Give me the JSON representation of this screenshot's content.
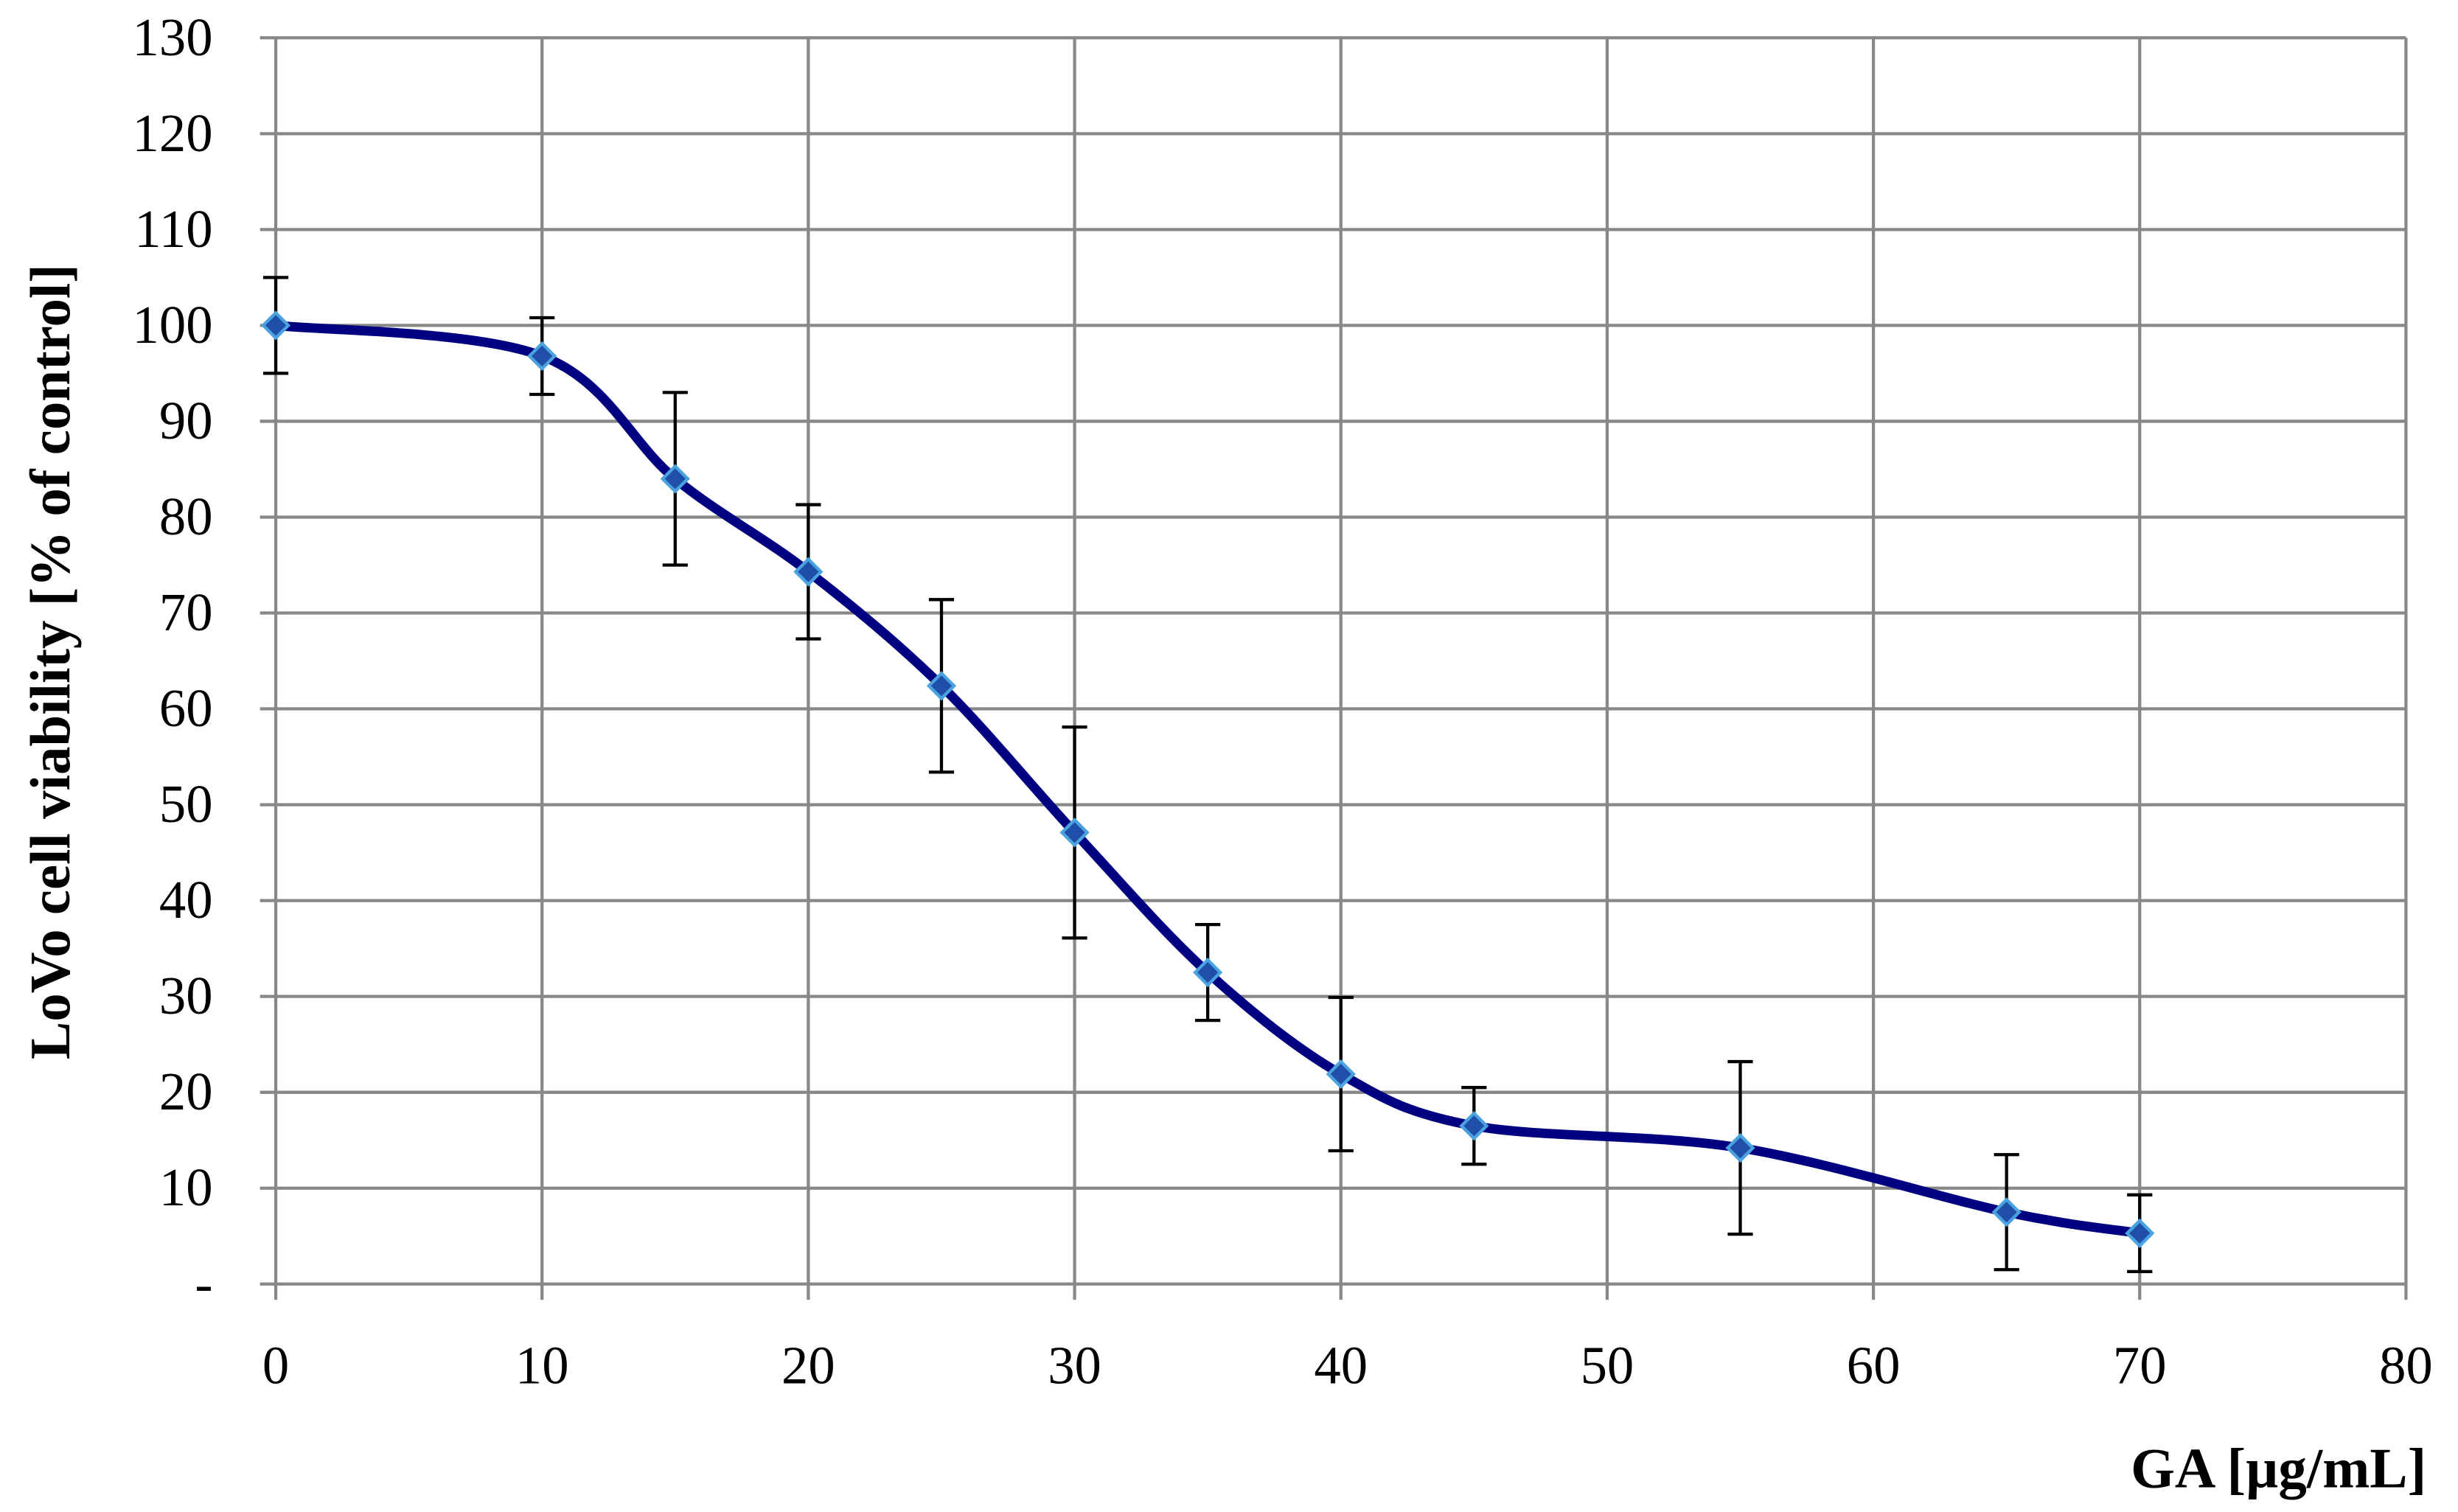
{
  "chart_data": {
    "type": "line",
    "x_label": "GA [µg/mL]",
    "y_label": "LoVo cell viability [% of control]",
    "x": [
      0,
      10,
      15,
      20,
      25,
      30,
      35,
      40,
      45,
      55,
      65,
      70
    ],
    "series": [
      {
        "color": "#000080",
        "marker_color": "#1f4fa8",
        "values": [
          100,
          96.8,
          84,
          74.3,
          62.4,
          47.1,
          32.5,
          21.9,
          16.5,
          14.2,
          7.5,
          5.3
        ],
        "errors": [
          5,
          4,
          9,
          7,
          9,
          11,
          5,
          8,
          4,
          9,
          6,
          4
        ]
      }
    ],
    "xlim": [
      0,
      80
    ],
    "xticks": [
      0,
      10,
      20,
      30,
      40,
      50,
      60,
      70,
      80
    ],
    "ylim": [
      0,
      130
    ],
    "yticks": [
      {
        "value": 0,
        "label": "-"
      },
      10,
      20,
      30,
      40,
      50,
      60,
      70,
      80,
      90,
      100,
      110,
      120,
      130
    ],
    "grid": true,
    "smooth": true
  }
}
